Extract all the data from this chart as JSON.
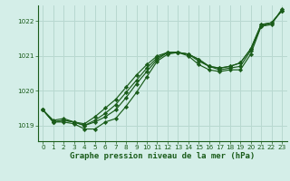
{
  "bg_color": "#d4eee8",
  "grid_color": "#b8d8d0",
  "line_color": "#1a5c1a",
  "marker_color": "#1a5c1a",
  "xlabel": "Graphe pression niveau de la mer (hPa)",
  "ylim": [
    1018.55,
    1022.45
  ],
  "xlim": [
    -0.5,
    23.5
  ],
  "yticks": [
    1019,
    1020,
    1021,
    1022
  ],
  "xticks": [
    0,
    1,
    2,
    3,
    4,
    5,
    6,
    7,
    8,
    9,
    10,
    11,
    12,
    13,
    14,
    15,
    16,
    17,
    18,
    19,
    20,
    21,
    22,
    23
  ],
  "line1": [
    1019.45,
    1019.1,
    1019.1,
    1019.05,
    1018.9,
    1018.9,
    1019.1,
    1019.2,
    1019.55,
    1019.95,
    1020.4,
    1020.85,
    1021.05,
    1021.1,
    1021.0,
    1020.75,
    1020.6,
    1020.55,
    1020.6,
    1020.6,
    1021.05,
    1021.85,
    1021.9,
    1022.35
  ],
  "line2": [
    1019.45,
    1019.1,
    1019.15,
    1019.1,
    1019.0,
    1019.1,
    1019.25,
    1019.45,
    1019.8,
    1020.2,
    1020.55,
    1020.9,
    1021.1,
    1021.1,
    1021.05,
    1020.85,
    1020.7,
    1020.6,
    1020.65,
    1020.7,
    1021.15,
    1021.85,
    1021.95,
    1022.3
  ],
  "line3": [
    1019.45,
    1019.1,
    1019.15,
    1019.1,
    1019.0,
    1019.15,
    1019.35,
    1019.6,
    1019.95,
    1020.3,
    1020.65,
    1020.95,
    1021.1,
    1021.1,
    1021.05,
    1020.9,
    1020.7,
    1020.65,
    1020.7,
    1020.8,
    1021.2,
    1021.9,
    1021.95,
    1022.3
  ],
  "line4": [
    1019.45,
    1019.15,
    1019.2,
    1019.1,
    1019.05,
    1019.25,
    1019.5,
    1019.75,
    1020.1,
    1020.45,
    1020.75,
    1021.0,
    1021.1,
    1021.1,
    1021.05,
    1020.9,
    1020.7,
    1020.65,
    1020.7,
    1020.8,
    1021.2,
    1021.9,
    1021.95,
    1022.3
  ]
}
